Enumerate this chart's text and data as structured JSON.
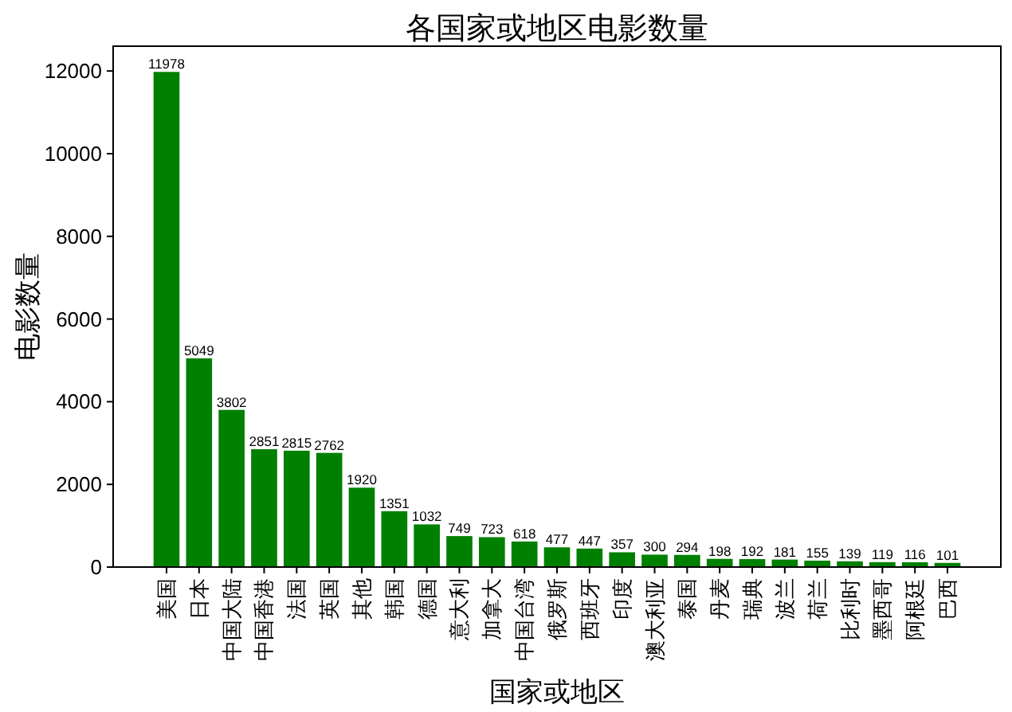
{
  "chart_data": {
    "type": "bar",
    "title": "各国家或地区电影数量",
    "xlabel": "国家或地区",
    "ylabel": "电影数量",
    "categories": [
      "美国",
      "日本",
      "中国大陆",
      "中国香港",
      "法国",
      "英国",
      "其他",
      "韩国",
      "德国",
      "意大利",
      "加拿大",
      "中国台湾",
      "俄罗斯",
      "西班牙",
      "印度",
      "澳大利亚",
      "泰国",
      "丹麦",
      "瑞典",
      "波兰",
      "荷兰",
      "比利时",
      "墨西哥",
      "阿根廷",
      "巴西"
    ],
    "values": [
      11978,
      5049,
      3802,
      2851,
      2815,
      2762,
      1920,
      1351,
      1032,
      749,
      723,
      618,
      477,
      447,
      357,
      300,
      294,
      198,
      192,
      181,
      155,
      139,
      119,
      116,
      101
    ],
    "color": "#008000",
    "ylim": [
      0,
      12600
    ],
    "yticks": [
      0,
      2000,
      4000,
      6000,
      8000,
      10000,
      12000
    ],
    "data_labels": true
  }
}
